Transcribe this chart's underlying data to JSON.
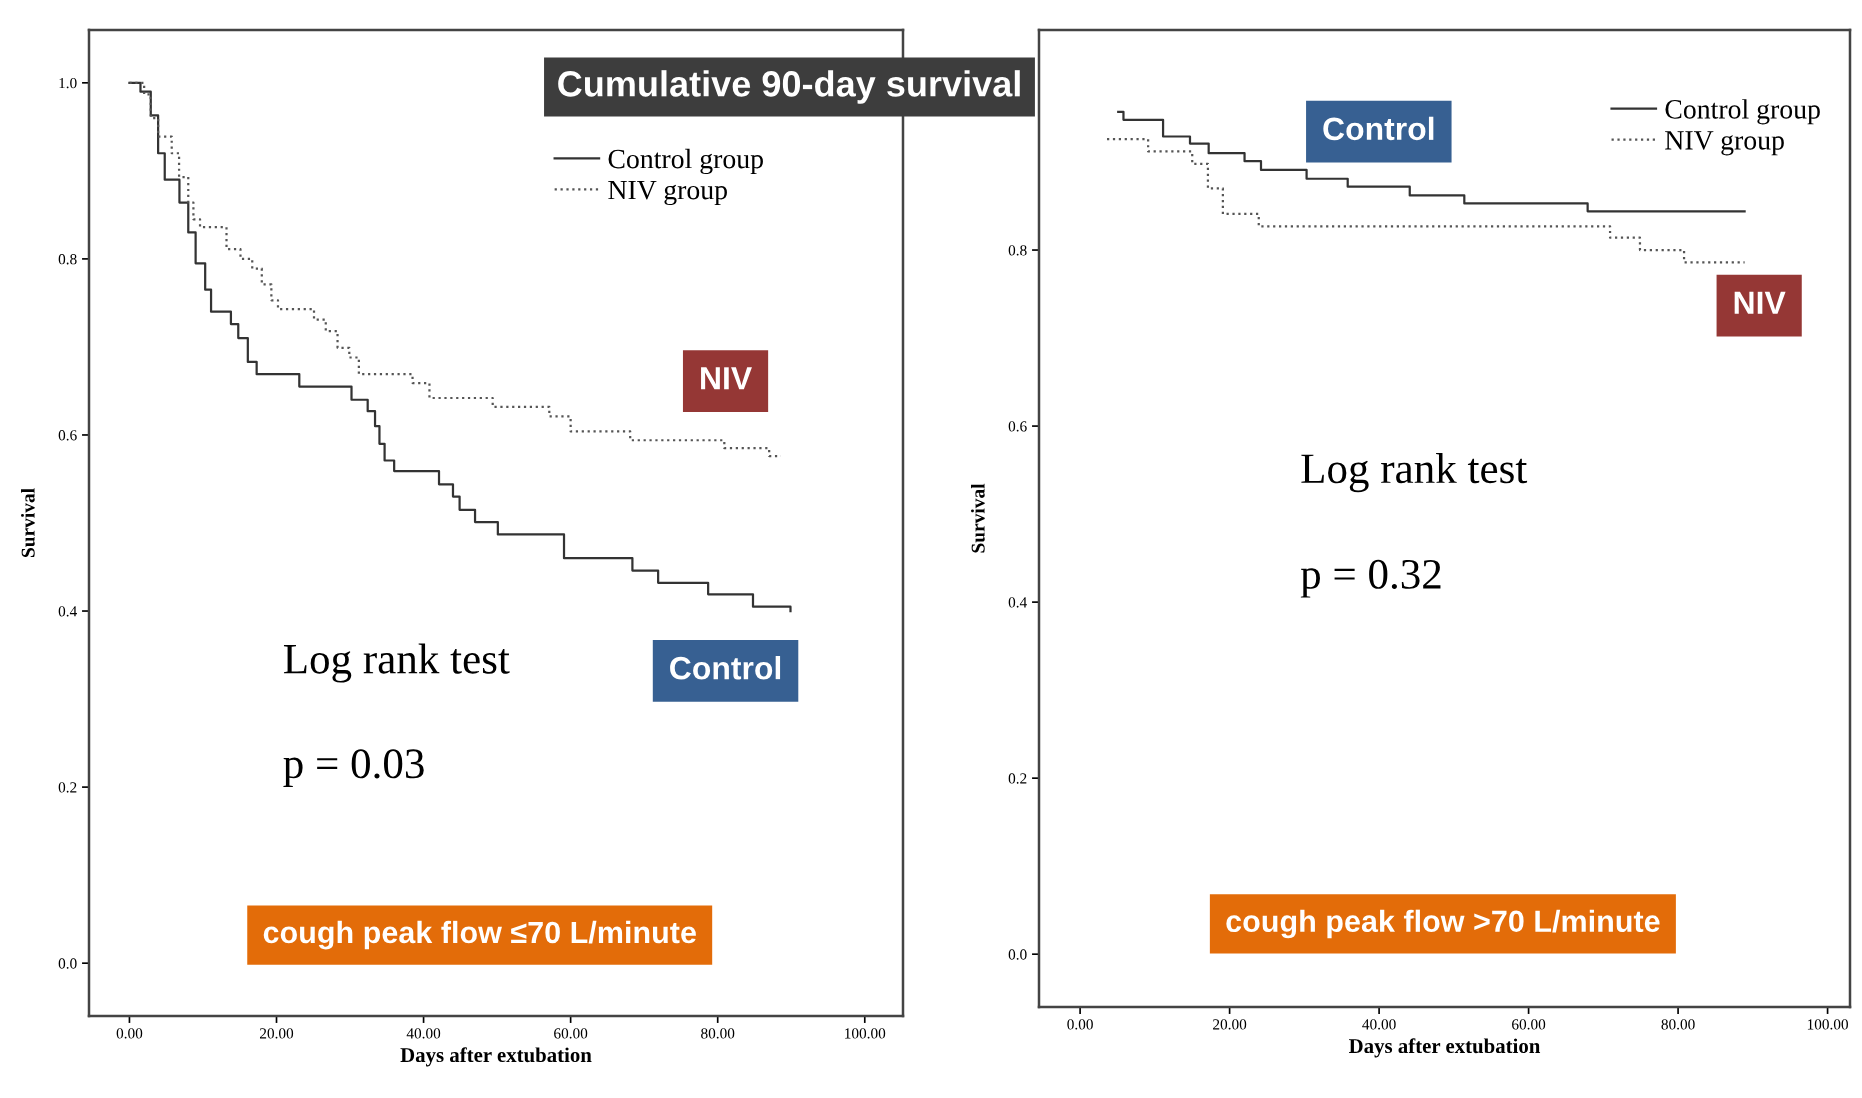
{
  "chart_data": [
    {
      "type": "step",
      "title": "Cumulative 90-day survival",
      "xlabel": "Days after extubation",
      "ylabel": "Survival",
      "xlim": [
        -5.5,
        105.2
      ],
      "ylim": [
        -0.06,
        1.06
      ],
      "xticks": [
        {
          "value": 0,
          "label": "0.00"
        },
        {
          "value": 20,
          "label": "20.00"
        },
        {
          "value": 40,
          "label": "40.00"
        },
        {
          "value": 60,
          "label": "60.00"
        },
        {
          "value": 80,
          "label": "80.00"
        },
        {
          "value": 100,
          "label": "100.00"
        }
      ],
      "yticks": [
        {
          "value": 0,
          "label": "0.0"
        },
        {
          "value": 0.2,
          "label": "0.2"
        },
        {
          "value": 0.4,
          "label": "0.4"
        },
        {
          "value": 0.6,
          "label": "0.6"
        },
        {
          "value": 0.8,
          "label": "0.8"
        },
        {
          "value": 1.0,
          "label": "1.0"
        }
      ],
      "legend": "top right",
      "grid": false,
      "series": [
        {
          "name": "Control group",
          "color": "#333333",
          "line_style": "solid",
          "x": [
            0,
            1.5,
            2.9,
            3.9,
            4.8,
            6.8,
            8.0,
            9.0,
            10.3,
            11.1,
            13.8,
            14.8,
            16.1,
            17.3,
            23.1,
            30.2,
            32.4,
            33.4,
            34.0,
            34.7,
            36.0,
            42.1,
            44.0,
            44.9,
            47.0,
            50.1,
            59.1,
            68.4,
            71.9,
            78.7,
            84.8,
            89.9
          ],
          "values": [
            1.0,
            0.99,
            0.963,
            0.92,
            0.89,
            0.864,
            0.83,
            0.795,
            0.765,
            0.74,
            0.726,
            0.71,
            0.683,
            0.669,
            0.655,
            0.64,
            0.627,
            0.61,
            0.59,
            0.571,
            0.559,
            0.544,
            0.53,
            0.515,
            0.501,
            0.487,
            0.46,
            0.446,
            0.432,
            0.419,
            0.405,
            0.4
          ]
        },
        {
          "name": "NIV group",
          "color": "#555555",
          "line_style": "dotted",
          "x": [
            0,
            2.0,
            2.9,
            3.9,
            5.75,
            6.75,
            8.0,
            8.7,
            9.6,
            13.2,
            15.1,
            16.7,
            18.0,
            19.3,
            20.2,
            25.1,
            26.7,
            28.3,
            29.9,
            31.2,
            38.5,
            40.8,
            49.4,
            57.1,
            60.0,
            68.1,
            80.9,
            87.0,
            88.6
          ],
          "values": [
            1.0,
            0.987,
            0.96,
            0.939,
            0.92,
            0.893,
            0.864,
            0.845,
            0.836,
            0.811,
            0.8,
            0.789,
            0.771,
            0.753,
            0.743,
            0.731,
            0.718,
            0.699,
            0.688,
            0.669,
            0.659,
            0.642,
            0.632,
            0.621,
            0.604,
            0.594,
            0.585,
            0.576,
            0.576
          ]
        }
      ],
      "annotations": [
        "Log rank test",
        "p = 0.03",
        "NIV",
        "Control",
        "cough peak flow ≤70 L/minute"
      ]
    },
    {
      "type": "step",
      "xlabel": "Days after extubation",
      "ylabel": "Survival",
      "xlim": [
        -5.5,
        103
      ],
      "ylim": [
        -0.06,
        1.05
      ],
      "xticks": [
        {
          "value": 0,
          "label": "0.00"
        },
        {
          "value": 20,
          "label": "20.00"
        },
        {
          "value": 40,
          "label": "40.00"
        },
        {
          "value": 60,
          "label": "60.00"
        },
        {
          "value": 80,
          "label": "80.00"
        },
        {
          "value": 100,
          "label": "100.00"
        }
      ],
      "yticks": [
        {
          "value": 0,
          "label": "0.0"
        },
        {
          "value": 0.2,
          "label": "0.2"
        },
        {
          "value": 0.4,
          "label": "0.4"
        },
        {
          "value": 0.6,
          "label": "0.6"
        },
        {
          "value": 0.8,
          "label": "0.8"
        }
      ],
      "legend": "top right",
      "grid": false,
      "series": [
        {
          "name": "Control group",
          "color": "#333333",
          "line_style": "solid",
          "x": [
            5.1,
            5.8,
            11.1,
            14.7,
            17.2,
            22.0,
            24.2,
            30.3,
            35.8,
            44.1,
            51.4,
            67.9,
            88.9
          ],
          "values": [
            0.957,
            0.948,
            0.929,
            0.921,
            0.91,
            0.901,
            0.891,
            0.881,
            0.872,
            0.862,
            0.853,
            0.844,
            0.844
          ]
        },
        {
          "name": "NIV group",
          "color": "#555555",
          "line_style": "dotted",
          "x": [
            3.6,
            9.1,
            15.0,
            17.1,
            19.1,
            23.9,
            70.9,
            74.9,
            80.8,
            88.9
          ],
          "values": [
            0.926,
            0.912,
            0.898,
            0.87,
            0.841,
            0.827,
            0.814,
            0.8,
            0.786,
            0.786
          ]
        }
      ],
      "annotations": [
        "Log rank test",
        "p = 0.32",
        "Control",
        "NIV",
        "cough peak flow >70 L/minute"
      ]
    }
  ]
}
